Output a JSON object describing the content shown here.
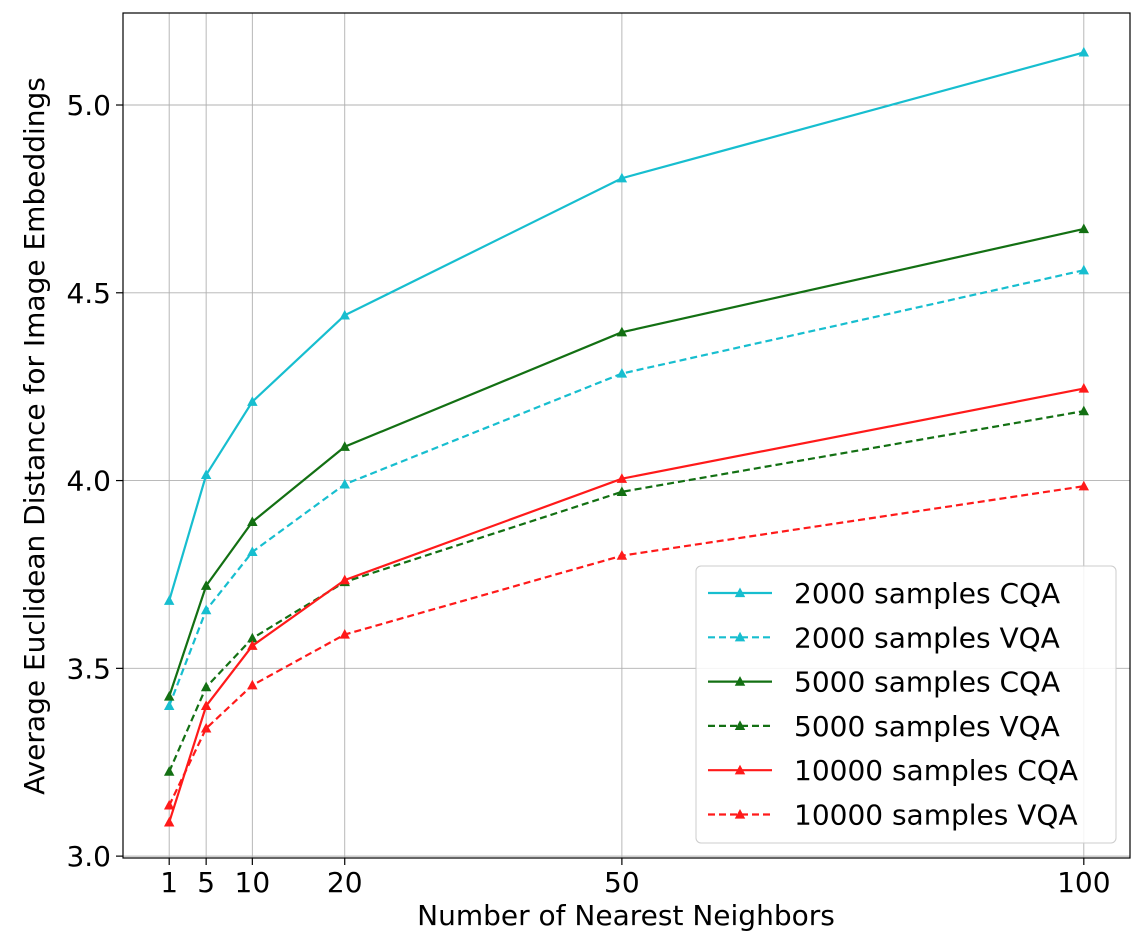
{
  "chart_data": {
    "type": "line",
    "title": "",
    "xlabel": "Number of Nearest Neighbors",
    "ylabel": "Average Euclidean Distance for Image Embeddings",
    "x": [
      1,
      5,
      10,
      20,
      50,
      100
    ],
    "xticks": [
      1,
      5,
      10,
      20,
      50,
      100
    ],
    "xtick_labels": [
      "1",
      "5",
      "10",
      "20",
      "50",
      "100"
    ],
    "xlim": [
      -4,
      105
    ],
    "yticks": [
      3.0,
      3.5,
      4.0,
      4.5,
      5.0
    ],
    "ytick_labels": [
      "3.0",
      "3.5",
      "4.0",
      "4.5",
      "5.0"
    ],
    "ylim": [
      2.995,
      5.245
    ],
    "grid": true,
    "legend_position": "bottom-right",
    "series": [
      {
        "name": "2000 samples CQA",
        "color": "#17becf",
        "dash": "solid",
        "marker": "triangle",
        "values": [
          3.68,
          4.015,
          4.21,
          4.44,
          4.805,
          5.14
        ]
      },
      {
        "name": "2000 samples VQA",
        "color": "#17becf",
        "dash": "dashed",
        "marker": "triangle",
        "values": [
          3.4,
          3.655,
          3.81,
          3.99,
          4.285,
          4.56
        ]
      },
      {
        "name": "5000 samples CQA",
        "color": "#137013",
        "dash": "solid",
        "marker": "triangle",
        "values": [
          3.425,
          3.72,
          3.89,
          4.09,
          4.395,
          4.67
        ]
      },
      {
        "name": "5000 samples VQA",
        "color": "#137013",
        "dash": "dashed",
        "marker": "triangle",
        "values": [
          3.225,
          3.45,
          3.58,
          3.73,
          3.97,
          4.185
        ]
      },
      {
        "name": "10000 samples CQA",
        "color": "#ff1a1a",
        "dash": "solid",
        "marker": "triangle",
        "values": [
          3.09,
          3.4,
          3.56,
          3.735,
          4.005,
          4.245
        ]
      },
      {
        "name": "10000 samples VQA",
        "color": "#ff1a1a",
        "dash": "dashed",
        "marker": "triangle",
        "values": [
          3.135,
          3.34,
          3.455,
          3.59,
          3.8,
          3.985
        ]
      }
    ]
  }
}
